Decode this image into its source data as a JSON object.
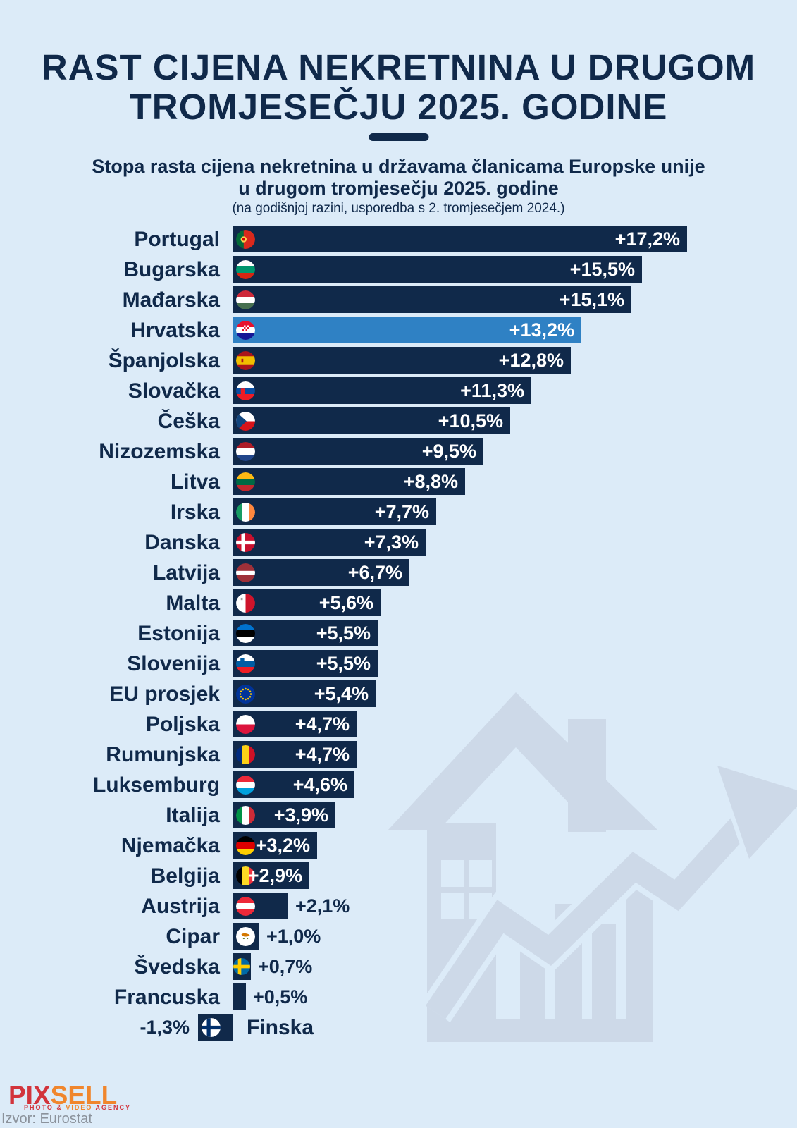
{
  "header": {
    "title_line1": "RAST CIJENA NEKRETNINA U DRUGOM",
    "title_line2": "TROMJESEČJU 2025. GODINE",
    "subtitle_line1": "Stopa rasta cijena nekretnina u državama članicama Europske unije",
    "subtitle_line2": "u drugom tromjesečju 2025. godine",
    "note": "(na godišnjoj razini, usporedba s 2. tromjesečjem 2024.)"
  },
  "colors": {
    "background": "#dcebf8",
    "bar": "#10294a",
    "bar_highlight": "#2f81c4",
    "text": "#10294a",
    "value_inside": "#ffffff",
    "watermark": "#cdd9e8",
    "source_text": "#8b929b",
    "logo_red": "#d2343c",
    "logo_orange": "#f0862d"
  },
  "chart_data": {
    "type": "bar",
    "orientation": "horizontal",
    "unit": "%",
    "title": "RAST CIJENA NEKRETNINA U DRUGOM TROMJESEČJU 2025. GODINE",
    "subtitle": "Stopa rasta cijena nekretnina u državama članicama Europske unije u drugom tromjesečju 2025. godine",
    "annotation": "(na godišnjoj razini, usporedba s 2. tromjesečjem 2024.)",
    "xlim": [
      -1.5,
      17.5
    ],
    "grid": false,
    "legend": false,
    "highlight_category": "Hrvatska",
    "categories": [
      "Portugal",
      "Bugarska",
      "Mađarska",
      "Hrvatska",
      "Španjolska",
      "Slovačka",
      "Češka",
      "Nizozemska",
      "Litva",
      "Irska",
      "Danska",
      "Latvija",
      "Malta",
      "Estonija",
      "Slovenija",
      "EU prosjek",
      "Poljska",
      "Rumunjska",
      "Luksemburg",
      "Italija",
      "Njemačka",
      "Belgija",
      "Austrija",
      "Cipar",
      "Švedska",
      "Francuska",
      "Finska"
    ],
    "values": [
      17.2,
      15.5,
      15.1,
      13.2,
      12.8,
      11.3,
      10.5,
      9.5,
      8.8,
      7.7,
      7.3,
      6.7,
      5.6,
      5.5,
      5.5,
      5.4,
      4.7,
      4.7,
      4.6,
      3.9,
      3.2,
      2.9,
      2.1,
      1.0,
      0.7,
      0.5,
      -1.3
    ],
    "rows": [
      {
        "country": "Portugal",
        "value": 17.2,
        "label": "+17,2%",
        "value_pos": "in",
        "highlight": false,
        "flag": {
          "name": "portugal-flag-icon",
          "type": "v",
          "colors": [
            "#046a38",
            "#da291c"
          ],
          "fractions": [
            0.4,
            0.6
          ],
          "emblems": [
            {
              "shape": "circle",
              "color": "#ffd24d",
              "x": 0.4,
              "y": 0.5,
              "r": 0.155
            },
            {
              "shape": "circle",
              "color": "#d20000",
              "x": 0.4,
              "y": 0.5,
              "r": 0.075
            }
          ]
        }
      },
      {
        "country": "Bugarska",
        "value": 15.5,
        "label": "+15,5%",
        "value_pos": "in",
        "highlight": false,
        "flag": {
          "name": "bulgaria-flag-icon",
          "type": "h",
          "colors": [
            "#ffffff",
            "#00966e",
            "#d62612"
          ]
        }
      },
      {
        "country": "Mađarska",
        "value": 15.1,
        "label": "+15,1%",
        "value_pos": "in",
        "highlight": false,
        "flag": {
          "name": "hungary-flag-icon",
          "type": "h",
          "colors": [
            "#ce2939",
            "#ffffff",
            "#477050"
          ]
        }
      },
      {
        "country": "Hrvatska",
        "value": 13.2,
        "label": "+13,2%",
        "value_pos": "in",
        "highlight": true,
        "flag": {
          "name": "croatia-flag-icon",
          "type": "h",
          "colors": [
            "#e8112d",
            "#ffffff",
            "#171796"
          ],
          "emblems": [
            {
              "shape": "checker",
              "colors": [
                "#e8112d",
                "#ffffff"
              ],
              "x": 0.5,
              "y": 0.38,
              "w": 0.36,
              "h": 0.28
            }
          ]
        }
      },
      {
        "country": "Španjolska",
        "value": 12.8,
        "label": "+12,8%",
        "value_pos": "in",
        "highlight": false,
        "flag": {
          "name": "spain-flag-icon",
          "type": "h",
          "colors": [
            "#aa151b",
            "#f1bf00",
            "#aa151b"
          ],
          "fractions": [
            0.27,
            0.46,
            0.27
          ],
          "emblems": [
            {
              "shape": "rect",
              "color": "#ad1519",
              "x": 0.33,
              "y": 0.5,
              "w": 0.1,
              "h": 0.2
            }
          ]
        }
      },
      {
        "country": "Slovačka",
        "value": 11.3,
        "label": "+11,3%",
        "value_pos": "in",
        "highlight": false,
        "flag": {
          "name": "slovakia-flag-icon",
          "type": "h",
          "colors": [
            "#ffffff",
            "#0b4ea2",
            "#ee1c25"
          ],
          "emblems": [
            {
              "shape": "shield",
              "color": "#ee1c25",
              "x": 0.36,
              "y": 0.55,
              "w": 0.22,
              "h": 0.34
            }
          ]
        }
      },
      {
        "country": "Češka",
        "value": 10.5,
        "label": "+10,5%",
        "value_pos": "in",
        "highlight": false,
        "flag": {
          "name": "czechia-flag-icon",
          "type": "czech",
          "colors": [
            "#ffffff",
            "#d7141a",
            "#11457e"
          ]
        }
      },
      {
        "country": "Nizozemska",
        "value": 9.5,
        "label": "+9,5%",
        "value_pos": "in",
        "highlight": false,
        "flag": {
          "name": "netherlands-flag-icon",
          "type": "h",
          "colors": [
            "#ae1c28",
            "#ffffff",
            "#21468b"
          ]
        }
      },
      {
        "country": "Litva",
        "value": 8.8,
        "label": "+8,8%",
        "value_pos": "in",
        "highlight": false,
        "flag": {
          "name": "lithuania-flag-icon",
          "type": "h",
          "colors": [
            "#fdb913",
            "#006a44",
            "#c1272d"
          ]
        }
      },
      {
        "country": "Irska",
        "value": 7.7,
        "label": "+7,7%",
        "value_pos": "in",
        "highlight": false,
        "flag": {
          "name": "ireland-flag-icon",
          "type": "v",
          "colors": [
            "#169b62",
            "#ffffff",
            "#ff883e"
          ]
        }
      },
      {
        "country": "Danska",
        "value": 7.3,
        "label": "+7,3%",
        "value_pos": "in",
        "highlight": false,
        "flag": {
          "name": "denmark-flag-icon",
          "type": "nordic",
          "colors": [
            "#c8102e",
            "#ffffff"
          ]
        }
      },
      {
        "country": "Latvija",
        "value": 6.7,
        "label": "+6,7%",
        "value_pos": "in",
        "highlight": false,
        "flag": {
          "name": "latvia-flag-icon",
          "type": "h",
          "colors": [
            "#9e3039",
            "#ffffff",
            "#9e3039"
          ],
          "fractions": [
            0.4,
            0.2,
            0.4
          ]
        }
      },
      {
        "country": "Malta",
        "value": 5.6,
        "label": "+5,6%",
        "value_pos": "in",
        "highlight": false,
        "flag": {
          "name": "malta-flag-icon",
          "type": "v",
          "colors": [
            "#ffffff",
            "#cf142b"
          ],
          "fractions": [
            0.5,
            0.5
          ],
          "emblems": [
            {
              "shape": "rect",
              "color": "#a0a0a0",
              "x": 0.3,
              "y": 0.28,
              "w": 0.1,
              "h": 0.12
            }
          ]
        }
      },
      {
        "country": "Estonija",
        "value": 5.5,
        "label": "+5,5%",
        "value_pos": "in",
        "highlight": false,
        "flag": {
          "name": "estonia-flag-icon",
          "type": "h",
          "colors": [
            "#0072ce",
            "#000000",
            "#ffffff"
          ]
        }
      },
      {
        "country": "Slovenija",
        "value": 5.5,
        "label": "+5,5%",
        "value_pos": "in",
        "highlight": false,
        "flag": {
          "name": "slovenia-flag-icon",
          "type": "h",
          "colors": [
            "#ffffff",
            "#005da4",
            "#ed1c24"
          ],
          "emblems": [
            {
              "shape": "shield",
              "color": "#005da4",
              "x": 0.33,
              "y": 0.36,
              "w": 0.2,
              "h": 0.28
            }
          ]
        }
      },
      {
        "country": "EU prosjek",
        "value": 5.4,
        "label": "+5,4%",
        "value_pos": "in",
        "highlight": false,
        "flag": {
          "name": "eu-flag-icon",
          "type": "eu",
          "colors": [
            "#003399",
            "#ffcc00"
          ]
        }
      },
      {
        "country": "Poljska",
        "value": 4.7,
        "label": "+4,7%",
        "value_pos": "in",
        "highlight": false,
        "flag": {
          "name": "poland-flag-icon",
          "type": "h",
          "colors": [
            "#ffffff",
            "#dc143c"
          ],
          "fractions": [
            0.5,
            0.5
          ]
        }
      },
      {
        "country": "Rumunjska",
        "value": 4.7,
        "label": "+4,7%",
        "value_pos": "in",
        "highlight": false,
        "flag": {
          "name": "romania-flag-icon",
          "type": "v",
          "colors": [
            "#002b7f",
            "#fcd116",
            "#ce1126"
          ]
        }
      },
      {
        "country": "Luksemburg",
        "value": 4.6,
        "label": "+4,6%",
        "value_pos": "in",
        "highlight": false,
        "flag": {
          "name": "luxembourg-flag-icon",
          "type": "h",
          "colors": [
            "#ed2939",
            "#ffffff",
            "#00a1de"
          ]
        }
      },
      {
        "country": "Italija",
        "value": 3.9,
        "label": "+3,9%",
        "value_pos": "in",
        "highlight": false,
        "flag": {
          "name": "italy-flag-icon",
          "type": "v",
          "colors": [
            "#009246",
            "#ffffff",
            "#ce2b37"
          ]
        }
      },
      {
        "country": "Njemačka",
        "value": 3.2,
        "label": "+3,2%",
        "value_pos": "in",
        "highlight": false,
        "flag": {
          "name": "germany-flag-icon",
          "type": "h",
          "colors": [
            "#000000",
            "#dd0000",
            "#ffce00"
          ]
        }
      },
      {
        "country": "Belgija",
        "value": 2.9,
        "label": "+2,9%",
        "value_pos": "in",
        "highlight": false,
        "flag": {
          "name": "belgium-flag-icon",
          "type": "v",
          "colors": [
            "#000000",
            "#fdda24",
            "#ef3340"
          ]
        }
      },
      {
        "country": "Austrija",
        "value": 2.1,
        "label": "+2,1%",
        "value_pos": "out",
        "highlight": false,
        "flag": {
          "name": "austria-flag-icon",
          "type": "h",
          "colors": [
            "#ed2939",
            "#ffffff",
            "#ed2939"
          ]
        }
      },
      {
        "country": "Cipar",
        "value": 1.0,
        "label": "+1,0%",
        "value_pos": "out",
        "highlight": false,
        "flag": {
          "name": "cyprus-flag-icon",
          "type": "cyprus",
          "colors": [
            "#ffffff",
            "#d57800"
          ]
        }
      },
      {
        "country": "Švedska",
        "value": 0.7,
        "label": "+0,7%",
        "value_pos": "out",
        "highlight": false,
        "flag": {
          "name": "sweden-flag-icon",
          "type": "nordic",
          "colors": [
            "#006aa7",
            "#fecc00"
          ]
        }
      },
      {
        "country": "Francuska",
        "value": 0.5,
        "label": "+0,5%",
        "value_pos": "out",
        "highlight": false,
        "flag": null
      },
      {
        "country": "Finska",
        "value": -1.3,
        "label": "-1,3%",
        "value_pos": "left",
        "highlight": false,
        "flag": {
          "name": "finland-flag-icon",
          "type": "nordic",
          "colors": [
            "#ffffff",
            "#002f6c"
          ]
        }
      }
    ]
  },
  "footer": {
    "logo": {
      "pix": "PIX",
      "sell": "SELL",
      "tagline_photo": "PHOTO &",
      "tagline_video": "VIDEO",
      "tagline_agency": "AGENCY"
    },
    "source": "Izvor: Eurostat"
  }
}
